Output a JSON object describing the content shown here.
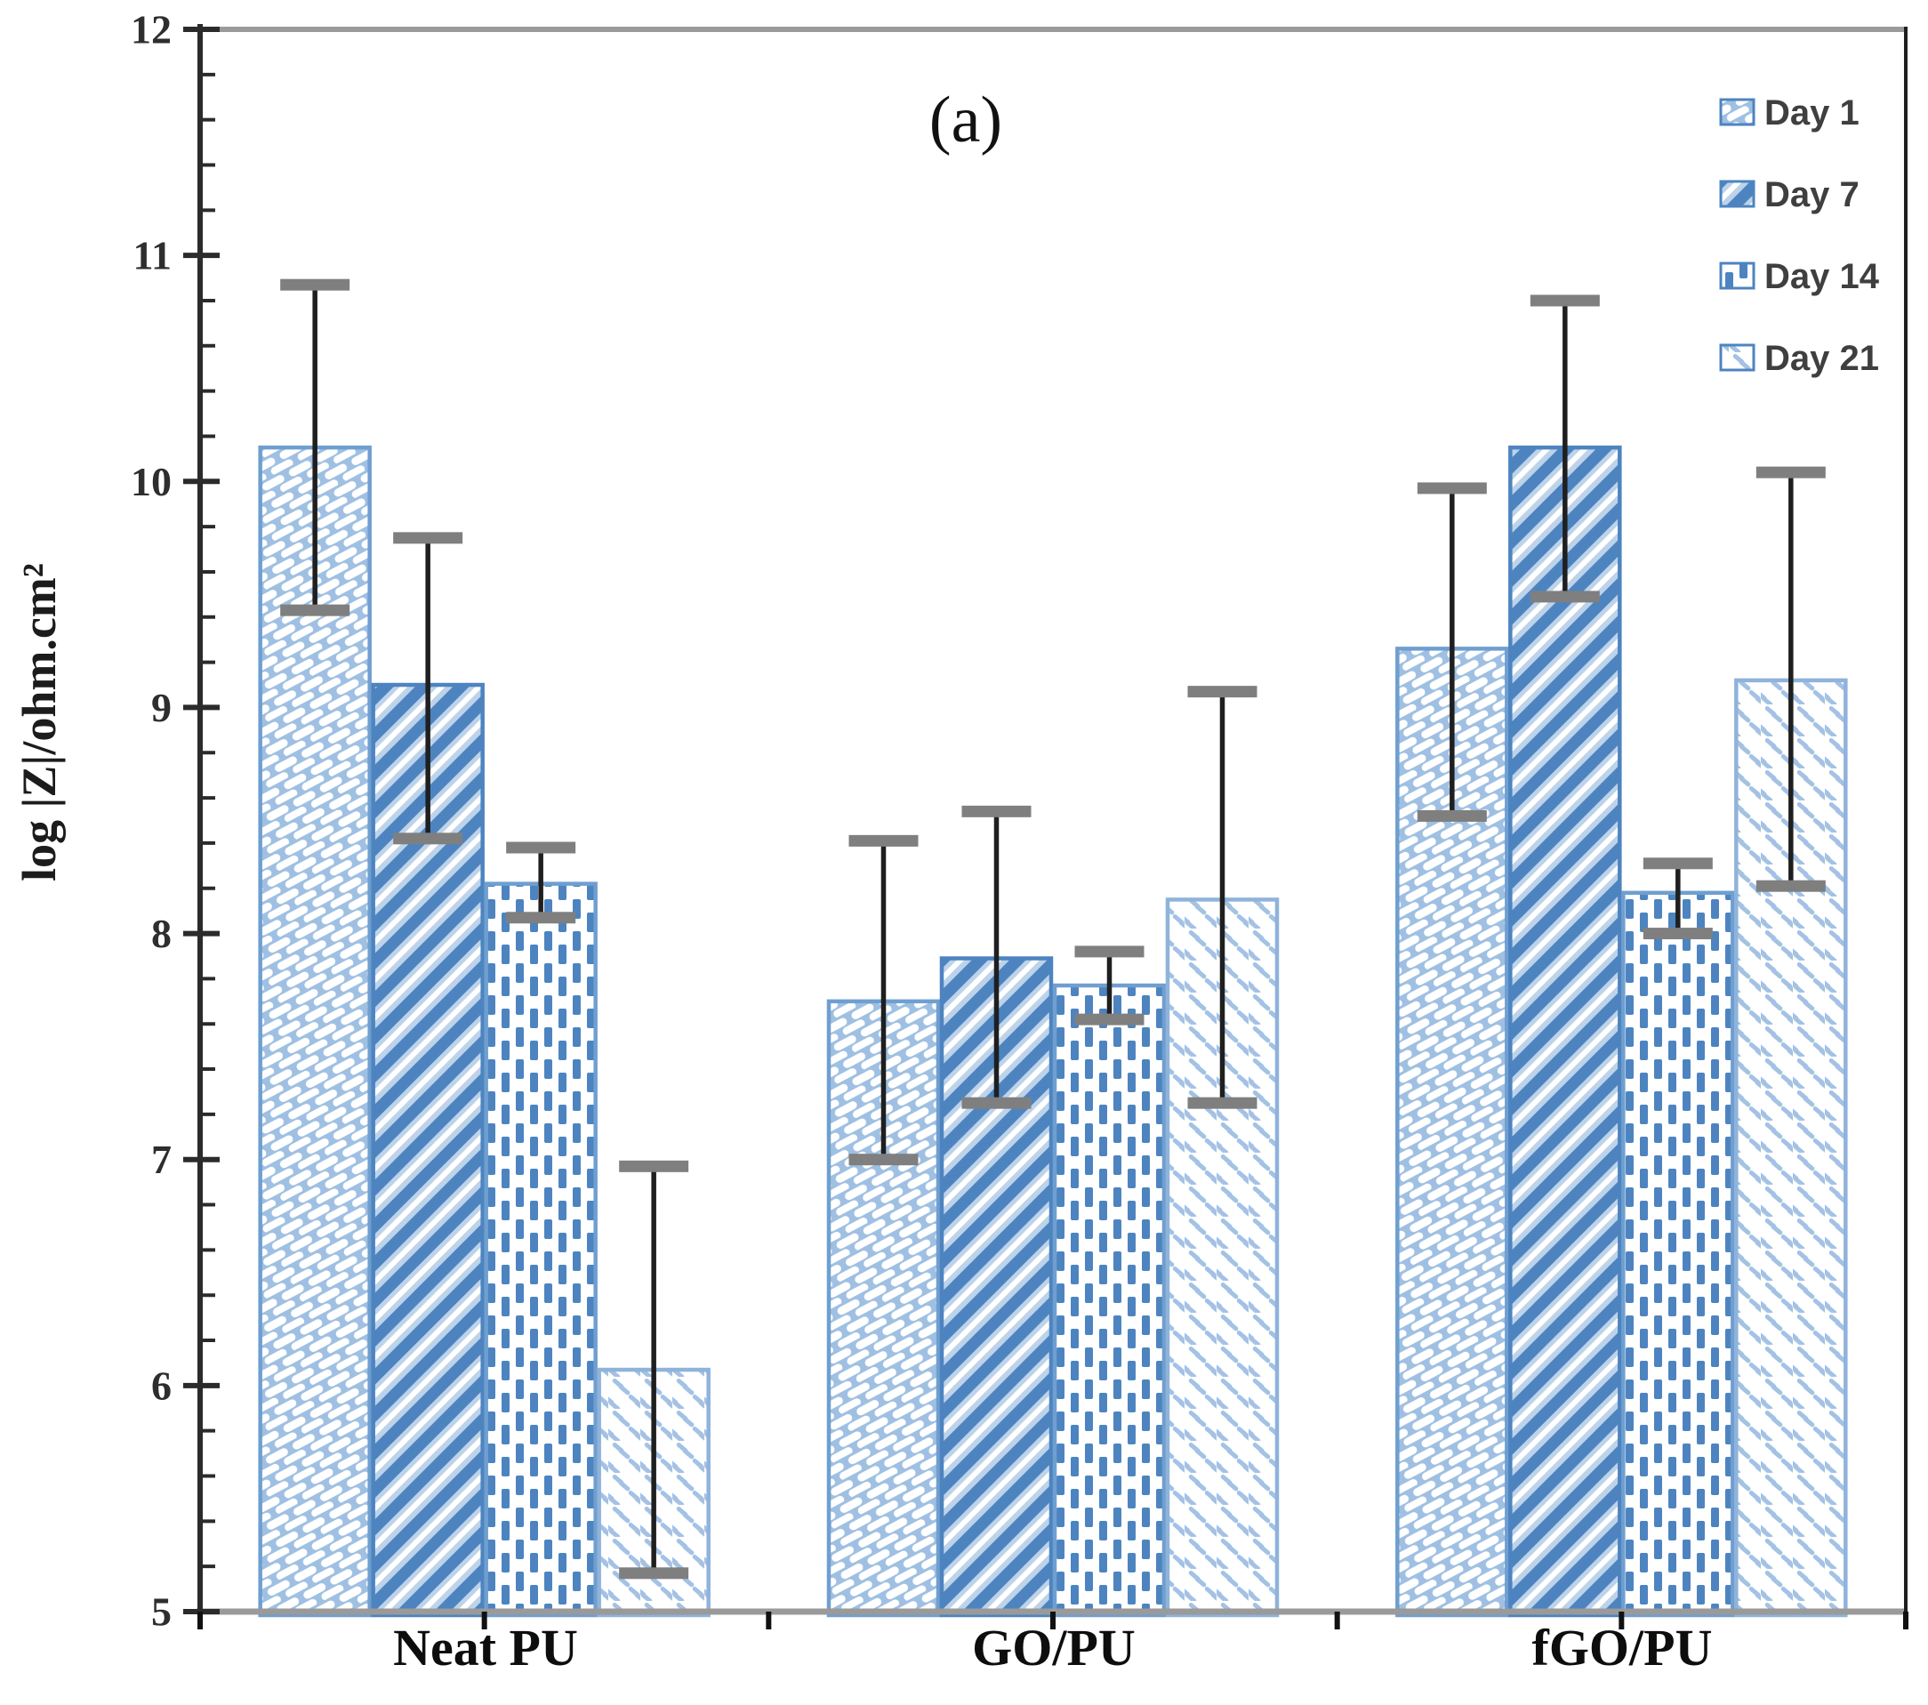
{
  "figure": {
    "panel_label": "(a)"
  },
  "chart_data": {
    "type": "bar",
    "panel_label": "(a)",
    "title": "",
    "xlabel": "",
    "ylabel": "log |Z|/ohm.cm²",
    "ylim": [
      5,
      12
    ],
    "y_major_ticks": [
      5,
      6,
      7,
      8,
      9,
      10,
      11,
      12
    ],
    "y_minor_tick_step": 0.2,
    "grid": false,
    "legend_position": "top-right",
    "categories": [
      "Neat PU",
      "GO/PU",
      "fGO/PU"
    ],
    "series": [
      {
        "name": "Day 1",
        "pattern": "diagonal-dash-up",
        "values": [
          10.15,
          7.7,
          9.26
        ],
        "error_low": [
          9.43,
          7.0,
          8.52
        ],
        "error_high": [
          10.87,
          8.41,
          9.97
        ]
      },
      {
        "name": "Day 7",
        "pattern": "diagonal-stripe-down",
        "values": [
          9.1,
          7.89,
          10.15
        ],
        "error_low": [
          8.42,
          7.25,
          9.49
        ],
        "error_high": [
          9.75,
          8.54,
          10.8
        ]
      },
      {
        "name": "Day 14",
        "pattern": "vertical-dash",
        "values": [
          8.22,
          7.77,
          8.18
        ],
        "error_low": [
          8.07,
          7.62,
          8.0
        ],
        "error_high": [
          8.38,
          7.92,
          8.31
        ]
      },
      {
        "name": "Day 21",
        "pattern": "diagonal-dash-light",
        "values": [
          6.07,
          8.15,
          9.12
        ],
        "error_low": [
          5.17,
          7.25,
          8.21
        ],
        "error_high": [
          6.97,
          9.07,
          10.04
        ]
      }
    ],
    "colors": {
      "bar_blue_strong": "#4d84c0",
      "bar_blue_mid": "#6f9fd0",
      "bar_blue_light": "#a7c5e6",
      "bar_halo": "#bdd3ea",
      "bar_border": "#5e90c6",
      "error_line": "#1f1f1f",
      "error_cap": "#7f7f7f",
      "axis_dark": "#2b2b2b",
      "axis_gray": "#9a9a9a",
      "text_dark": "#1c1c1c",
      "legend_text": "#3f3f3f"
    }
  }
}
